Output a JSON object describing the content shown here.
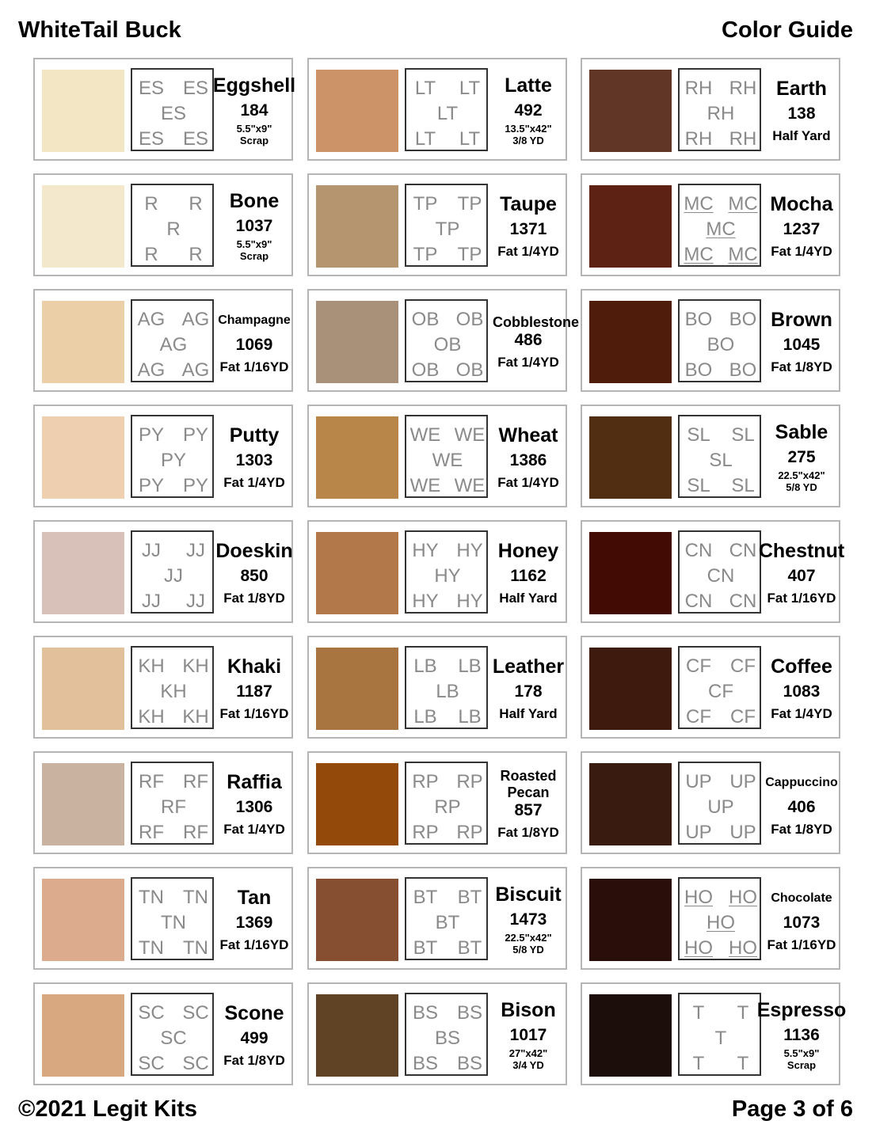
{
  "header": {
    "title": "WhiteTail Buck",
    "subtitle": "Color Guide"
  },
  "footer": {
    "copyright": "©2021 Legit Kits",
    "page": "Page 3 of 6"
  },
  "columns": [
    [
      {
        "name": "Eggshell",
        "code": "ES",
        "number": "184",
        "size": [
          "5.5\"x9\"",
          "Scrap"
        ],
        "color": "#f3e6c5"
      },
      {
        "name": "Bone",
        "code": "R",
        "number": "1037",
        "size": [
          "5.5\"x9\"",
          "Scrap"
        ],
        "color": "#f3e8cb"
      },
      {
        "name": "Champagne",
        "code": "AG",
        "number": "1069",
        "size": [
          "Fat 1/16YD"
        ],
        "color": "#ebcfa6"
      },
      {
        "name": "Putty",
        "code": "PY",
        "number": "1303",
        "size": [
          "Fat 1/4YD"
        ],
        "color": "#eed0b0"
      },
      {
        "name": "Doeskin",
        "code": "JJ",
        "number": "850",
        "size": [
          "Fat 1/8YD"
        ],
        "color": "#d8c1b8"
      },
      {
        "name": "Khaki",
        "code": "KH",
        "number": "1187",
        "size": [
          "Fat 1/16YD"
        ],
        "color": "#e3c09c"
      },
      {
        "name": "Raffia",
        "code": "RF",
        "number": "1306",
        "size": [
          "Fat 1/4YD"
        ],
        "color": "#c9b2a0"
      },
      {
        "name": "Tan",
        "code": "TN",
        "number": "1369",
        "size": [
          "Fat 1/16YD"
        ],
        "color": "#dcab8d"
      },
      {
        "name": "Scone",
        "code": "SC",
        "number": "499",
        "size": [
          "Fat 1/8YD"
        ],
        "color": "#d8a880"
      }
    ],
    [
      {
        "name": "Latte",
        "code": "LT",
        "number": "492",
        "size": [
          "13.5\"x42\"",
          "3/8 YD"
        ],
        "color": "#cc9268"
      },
      {
        "name": "Taupe",
        "code": "TP",
        "number": "1371",
        "size": [
          "Fat 1/4YD"
        ],
        "color": "#b4956f"
      },
      {
        "name": "Cobblestone",
        "code": "OB",
        "number": "486",
        "size": [
          "Fat 1/4YD"
        ],
        "color": "#a99079"
      },
      {
        "name": "Wheat",
        "code": "WE",
        "number": "1386",
        "size": [
          "Fat 1/4YD"
        ],
        "color": "#b78648"
      },
      {
        "name": "Honey",
        "code": "HY",
        "number": "1162",
        "size": [
          "Half Yard"
        ],
        "color": "#b2784a"
      },
      {
        "name": "Leather",
        "code": "LB",
        "number": "178",
        "size": [
          "Half Yard"
        ],
        "color": "#a8743f"
      },
      {
        "name": "Roasted Pecan",
        "code": "RP",
        "number": "857",
        "size": [
          "Fat 1/8YD"
        ],
        "color": "#93490a"
      },
      {
        "name": "Biscuit",
        "code": "BT",
        "number": "1473",
        "size": [
          "22.5\"x42\"",
          "5/8 YD"
        ],
        "color": "#874f32"
      },
      {
        "name": "Bison",
        "code": "BS",
        "number": "1017",
        "size": [
          "27\"x42\"",
          "3/4 YD"
        ],
        "color": "#604224"
      }
    ],
    [
      {
        "name": "Earth",
        "code": "RH",
        "number": "138",
        "size": [
          "Half Yard"
        ],
        "color": "#623626"
      },
      {
        "name": "Mocha",
        "code": "MC",
        "underline": true,
        "number": "1237",
        "size": [
          "Fat 1/4YD"
        ],
        "color": "#5e2215"
      },
      {
        "name": "Brown",
        "code": "BO",
        "number": "1045",
        "size": [
          "Fat 1/8YD"
        ],
        "color": "#4f1b0a"
      },
      {
        "name": "Sable",
        "code": "SL",
        "number": "275",
        "size": [
          "22.5\"x42\"",
          "5/8 YD"
        ],
        "color": "#512e12"
      },
      {
        "name": "Chestnut",
        "code": "CN",
        "number": "407",
        "size": [
          "Fat 1/16YD"
        ],
        "color": "#420c04"
      },
      {
        "name": "Coffee",
        "code": "CF",
        "number": "1083",
        "size": [
          "Fat 1/4YD"
        ],
        "color": "#3e1a0e"
      },
      {
        "name": "Cappuccino",
        "code": "UP",
        "number": "406",
        "size": [
          "Fat 1/8YD"
        ],
        "color": "#3a1b10"
      },
      {
        "name": "Chocolate",
        "code": "HO",
        "underline": true,
        "number": "1073",
        "size": [
          "Fat 1/16YD"
        ],
        "color": "#2a0e0a"
      },
      {
        "name": "Espresso",
        "code": "T",
        "number": "1136",
        "size": [
          "5.5\"x9\"",
          "Scrap"
        ],
        "color": "#1c0e0b"
      }
    ]
  ]
}
